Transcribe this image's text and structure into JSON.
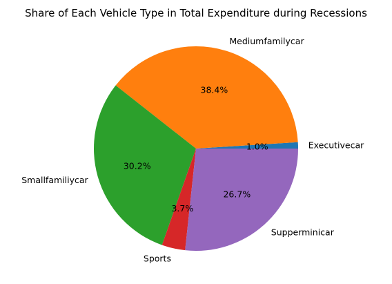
{
  "chart_data": {
    "type": "pie",
    "title": "Share of Each Vehicle Type in Total Expenditure during Recessions",
    "slices": [
      {
        "label": "Executivecar",
        "value": 1.0,
        "pct_label": "1.0%",
        "color": "#1f77b4"
      },
      {
        "label": "Mediumfamilycar",
        "value": 38.4,
        "pct_label": "38.4%",
        "color": "#ff7f0e"
      },
      {
        "label": "Smallfamiliycar",
        "value": 30.2,
        "pct_label": "30.2%",
        "color": "#2ca02c"
      },
      {
        "label": "Sports",
        "value": 3.7,
        "pct_label": "3.7%",
        "color": "#d62728"
      },
      {
        "label": "Supperminicar",
        "value": 26.7,
        "pct_label": "26.7%",
        "color": "#9467bd"
      }
    ],
    "start_angle_deg": 0,
    "direction": "counterclockwise",
    "legend": "none"
  }
}
